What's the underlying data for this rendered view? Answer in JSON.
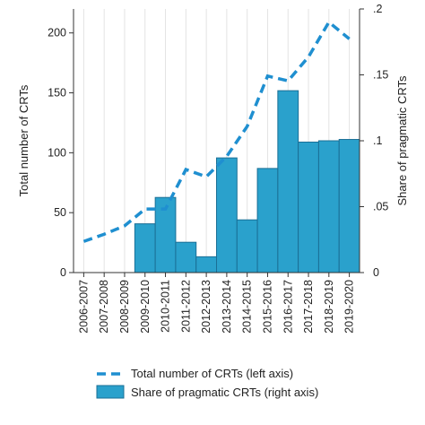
{
  "chart_data": {
    "type": "bar",
    "categories": [
      "2006-2007",
      "2007-2008",
      "2008-2009",
      "2009-2010",
      "2010-2011",
      "2011-2012",
      "2012-2013",
      "2013-2014",
      "2014-2015",
      "2015-2016",
      "2016-2017",
      "2017-2018",
      "2018-2019",
      "2019-2020"
    ],
    "series": [
      {
        "name": "Total number of CRTs (left axis)",
        "type": "line",
        "axis": "left",
        "style": "dashed",
        "color": "#1f8fd0",
        "values": [
          26,
          32,
          39,
          53,
          53,
          86,
          80,
          97,
          122,
          164,
          160,
          180,
          209,
          195
        ]
      },
      {
        "name": "Share of pragmatic CRTs (right axis)",
        "type": "bar",
        "axis": "right",
        "color": "#2aa1cc",
        "values": [
          null,
          null,
          null,
          0.037,
          0.057,
          0.023,
          0.012,
          0.087,
          0.04,
          0.079,
          0.138,
          0.099,
          0.1,
          0.101
        ]
      }
    ],
    "ylabel_left": "Total number of CRTs",
    "ylabel_right": "Share of pragmatic CRTs",
    "ylim_left": [
      0,
      220
    ],
    "ylim_right": [
      0,
      0.2
    ],
    "yticks_left": [
      "0",
      "50",
      "100",
      "150",
      "200"
    ],
    "yticks_left_values": [
      0,
      50,
      100,
      150,
      200
    ],
    "yticks_right": [
      "0",
      ".05",
      ".1",
      ".15",
      ".2"
    ],
    "yticks_right_values": [
      0,
      0.05,
      0.1,
      0.15,
      0.2
    ],
    "grid": "vertical",
    "legend": "bottom"
  }
}
